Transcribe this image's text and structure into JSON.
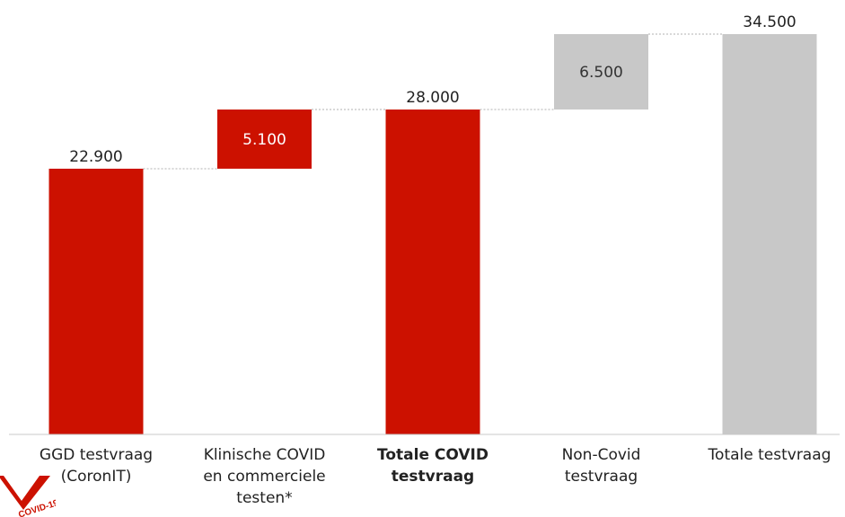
{
  "chart_data": {
    "type": "bar",
    "subtype": "waterfall",
    "categories": [
      "GGD testvraag\n(CoronIT)",
      "Klinische COVID\nen commerciele\ntesten*",
      "Totale COVID\ntestvraag",
      "Non-Covid\ntestvraag",
      "Totale testvraag"
    ],
    "bold_categories": [
      2
    ],
    "bars": [
      {
        "base": 0,
        "value": 22900,
        "label": "22.900",
        "label_position": "above",
        "color": "#cc1100"
      },
      {
        "base": 22900,
        "value": 5100,
        "label": "5.100",
        "label_position": "inside",
        "color": "#cc1100"
      },
      {
        "base": 0,
        "value": 28000,
        "label": "28.000",
        "label_position": "above",
        "color": "#cc1100"
      },
      {
        "base": 28000,
        "value": 6500,
        "label": "6.500",
        "label_position": "inside",
        "color": "#c8c8c8"
      },
      {
        "base": 0,
        "value": 34500,
        "label": "34.500",
        "label_position": "above",
        "color": "#c8c8c8"
      }
    ],
    "connectors": [
      {
        "from": 0,
        "to": 1,
        "y": 22900
      },
      {
        "from": 1,
        "to": 2,
        "y": 28000
      },
      {
        "from": 2,
        "to": 3,
        "y": 28000
      },
      {
        "from": 3,
        "to": 4,
        "y": 34500
      }
    ],
    "ylim": [
      0,
      34500
    ],
    "title": "",
    "xlabel": "",
    "ylabel": "",
    "grid": false,
    "legend": false
  },
  "logo": {
    "text": "COVID-19",
    "icon": "covid-19-logo-icon",
    "color": "#cc1100"
  }
}
